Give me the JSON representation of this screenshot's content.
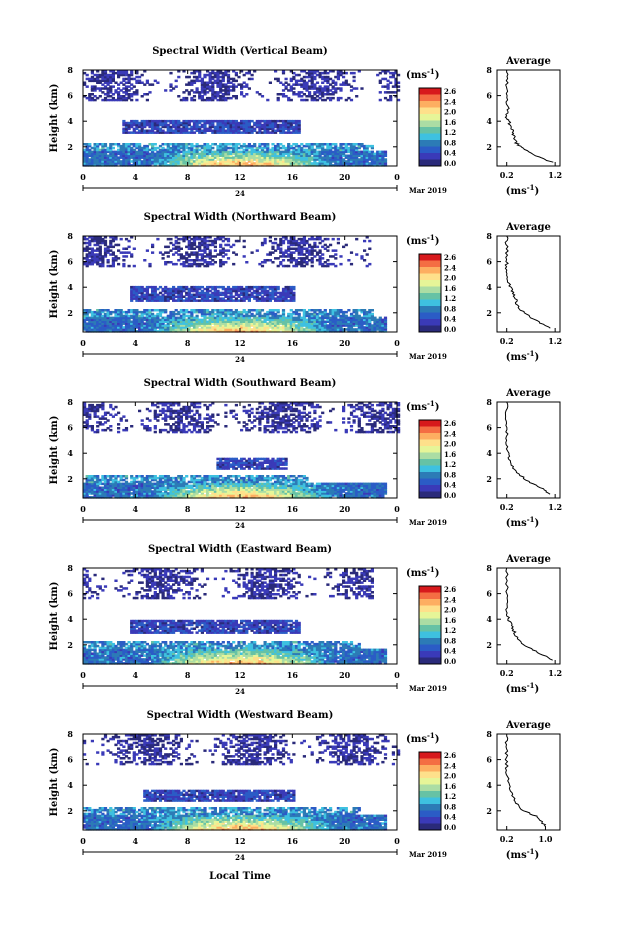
{
  "figure": {
    "common": {
      "ylabel": "Height (km)",
      "xticks": [
        "0",
        "4",
        "8",
        "12",
        "16",
        "20",
        "0"
      ],
      "yticks": [
        "2",
        "4",
        "6",
        "8"
      ],
      "day_label": "24",
      "month_label": "Mar 2019",
      "colorbar_unit": "(ms",
      "colorbar_unit_exp": "-1",
      "colorbar_unit_close": ")",
      "colorbar_ticks": [
        "2.6",
        "2.4",
        "2.0",
        "1.6",
        "1.2",
        "0.8",
        "0.4",
        "0.0"
      ],
      "colorbar_colors": [
        "#d7191c",
        "#f46d43",
        "#fdae61",
        "#fee08b",
        "#e6f598",
        "#abdda4",
        "#66c2a5",
        "#3ec1e0",
        "#2c7bb6",
        "#2b5cc6",
        "#3a3ab8",
        "#2a2a7a"
      ],
      "avg_title": "Average",
      "avg_ylabels": [
        "2",
        "4",
        "6",
        "8"
      ],
      "avg_xlabel": "(ms",
      "avg_xlabel_exp": "-1",
      "avg_xlabel_close": ")",
      "xlabel": "Local Time"
    }
  },
  "chart_data": [
    {
      "type": "heatmap",
      "title": "Spectral Width (Vertical Beam)",
      "x_range": [
        0,
        24
      ],
      "y_range": [
        0.5,
        8.0
      ],
      "z_range": [
        0.0,
        2.6
      ],
      "avg_xticks": [
        "0.2",
        "1.2"
      ],
      "avg_profile": [
        [
          1.15,
          0.8
        ],
        [
          0.85,
          1.2
        ],
        [
          0.55,
          1.8
        ],
        [
          0.4,
          2.3
        ],
        [
          0.35,
          2.8
        ],
        [
          0.32,
          3.3
        ],
        [
          0.25,
          3.9
        ],
        [
          0.2,
          4.3
        ],
        [
          0.22,
          5.0
        ],
        [
          0.2,
          6.0
        ],
        [
          0.2,
          7.0
        ],
        [
          0.2,
          8.0
        ]
      ]
    },
    {
      "type": "heatmap",
      "title": "Spectral Width (Northward Beam)",
      "x_range": [
        0,
        24
      ],
      "y_range": [
        0.5,
        8.0
      ],
      "z_range": [
        0.0,
        2.6
      ],
      "avg_xticks": [
        "0.2",
        "1.2"
      ],
      "avg_profile": [
        [
          1.1,
          0.8
        ],
        [
          0.8,
          1.4
        ],
        [
          0.55,
          2.0
        ],
        [
          0.42,
          2.6
        ],
        [
          0.38,
          3.2
        ],
        [
          0.3,
          3.8
        ],
        [
          0.22,
          4.4
        ],
        [
          0.2,
          5.2
        ],
        [
          0.2,
          6.0
        ],
        [
          0.2,
          7.0
        ],
        [
          0.2,
          8.0
        ]
      ]
    },
    {
      "type": "heatmap",
      "title": "Spectral Width (Southward Beam)",
      "x_range": [
        0,
        24
      ],
      "y_range": [
        0.5,
        8.0
      ],
      "z_range": [
        0.0,
        2.6
      ],
      "avg_xticks": [
        "0.2",
        "1.2"
      ],
      "avg_profile": [
        [
          1.1,
          0.8
        ],
        [
          0.9,
          1.3
        ],
        [
          0.6,
          1.9
        ],
        [
          0.38,
          2.6
        ],
        [
          0.28,
          3.3
        ],
        [
          0.22,
          4.0
        ],
        [
          0.2,
          5.0
        ],
        [
          0.2,
          6.0
        ],
        [
          0.2,
          7.0
        ],
        [
          0.2,
          8.0
        ]
      ]
    },
    {
      "type": "heatmap",
      "title": "Spectral Width (Eastward Beam)",
      "x_range": [
        0,
        24
      ],
      "y_range": [
        0.5,
        8.0
      ],
      "z_range": [
        0.0,
        2.6
      ],
      "avg_xticks": [
        "0.2",
        "1.2"
      ],
      "avg_profile": [
        [
          1.15,
          0.8
        ],
        [
          0.85,
          1.4
        ],
        [
          0.55,
          2.0
        ],
        [
          0.4,
          2.7
        ],
        [
          0.32,
          3.3
        ],
        [
          0.25,
          3.9
        ],
        [
          0.2,
          4.6
        ],
        [
          0.2,
          5.5
        ],
        [
          0.2,
          6.5
        ],
        [
          0.2,
          8.0
        ]
      ]
    },
    {
      "type": "heatmap",
      "title": "Spectral Width (Westward Beam)",
      "x_range": [
        0,
        24
      ],
      "y_range": [
        0.5,
        8.0
      ],
      "z_range": [
        0.0,
        2.6
      ],
      "avg_xticks": [
        "0.2",
        "1.0"
      ],
      "avg_profile": [
        [
          1.0,
          0.8
        ],
        [
          0.85,
          1.5
        ],
        [
          0.55,
          2.0
        ],
        [
          0.4,
          2.6
        ],
        [
          0.3,
          3.3
        ],
        [
          0.25,
          4.0
        ],
        [
          0.2,
          5.0
        ],
        [
          0.2,
          6.0
        ],
        [
          0.2,
          7.0
        ],
        [
          0.2,
          8.0
        ]
      ]
    }
  ]
}
